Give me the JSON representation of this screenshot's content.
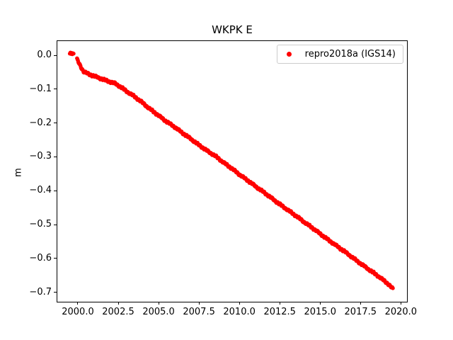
{
  "figure": {
    "background": "#ffffff"
  },
  "chart_data": {
    "type": "scatter",
    "title": "WKPK E",
    "xlabel": "",
    "ylabel": "m",
    "grid": false,
    "xlim": [
      1998.73,
      2020.38
    ],
    "ylim": [
      -0.728,
      0.042
    ],
    "xticks": {
      "values": [
        2000.0,
        2002.5,
        2005.0,
        2007.5,
        2010.0,
        2012.5,
        2015.0,
        2017.5,
        2020.0
      ],
      "labels": [
        "2000.0",
        "2002.5",
        "2005.0",
        "2007.5",
        "2010.0",
        "2012.5",
        "2015.0",
        "2017.5",
        "2020.0"
      ]
    },
    "yticks": {
      "values": [
        0.0,
        -0.1,
        -0.2,
        -0.3,
        -0.4,
        -0.5,
        -0.6,
        -0.7
      ],
      "labels": [
        "0.0",
        "−0.1",
        "−0.2",
        "−0.3",
        "−0.4",
        "−0.5",
        "−0.6",
        "−0.7"
      ]
    },
    "legend": {
      "label": "repro2018a (IGS14)",
      "loc": "upper right",
      "marker_color": "#ff0000",
      "edge_color": "#cccccc"
    },
    "series": [
      {
        "name": "repro2018a (IGS14)",
        "color": "#ff0000",
        "marker": "circle",
        "marker_radius_px": 2.7,
        "points_per_year": 52,
        "t_start": 1999.95,
        "t_end": 2019.5,
        "trend_m_per_yr": -0.0352,
        "pre_gap_cluster": [
          [
            1999.5,
            0.005
          ],
          [
            1999.54,
            0.008
          ],
          [
            1999.58,
            0.004
          ],
          [
            1999.62,
            0.007
          ],
          [
            1999.66,
            0.003
          ],
          [
            1999.7,
            0.006
          ],
          [
            1999.74,
            0.005
          ]
        ],
        "anchors": [
          [
            1999.95,
            -0.012
          ],
          [
            2000.1,
            -0.026
          ],
          [
            2000.35,
            -0.048
          ],
          [
            2000.7,
            -0.056
          ],
          [
            2001.1,
            -0.063
          ],
          [
            2001.5,
            -0.07
          ],
          [
            2001.9,
            -0.077
          ],
          [
            2002.3,
            -0.083
          ],
          [
            2002.7,
            -0.095
          ],
          [
            2003.0,
            -0.106
          ],
          [
            2003.4,
            -0.118
          ],
          [
            2003.9,
            -0.136
          ],
          [
            2004.4,
            -0.156
          ],
          [
            2005.0,
            -0.178
          ],
          [
            2005.5,
            -0.196
          ],
          [
            2006.0,
            -0.212
          ],
          [
            2006.5,
            -0.23
          ],
          [
            2007.0,
            -0.247
          ],
          [
            2007.5,
            -0.265
          ],
          [
            2008.0,
            -0.282
          ],
          [
            2008.5,
            -0.297
          ],
          [
            2009.0,
            -0.316
          ],
          [
            2009.5,
            -0.333
          ],
          [
            2010.0,
            -0.352
          ],
          [
            2010.5,
            -0.369
          ],
          [
            2011.0,
            -0.387
          ],
          [
            2011.5,
            -0.404
          ],
          [
            2012.0,
            -0.422
          ],
          [
            2012.5,
            -0.44
          ],
          [
            2013.0,
            -0.457
          ],
          [
            2013.5,
            -0.474
          ],
          [
            2014.0,
            -0.492
          ],
          [
            2014.5,
            -0.509
          ],
          [
            2015.0,
            -0.527
          ],
          [
            2015.5,
            -0.545
          ],
          [
            2016.0,
            -0.562
          ],
          [
            2016.5,
            -0.579
          ],
          [
            2017.0,
            -0.597
          ],
          [
            2017.5,
            -0.615
          ],
          [
            2018.0,
            -0.632
          ],
          [
            2018.5,
            -0.649
          ],
          [
            2019.0,
            -0.667
          ],
          [
            2019.25,
            -0.677
          ],
          [
            2019.5,
            -0.69
          ]
        ],
        "jitter": {
          "amps": [
            0.002,
            0.0012,
            0.0008
          ],
          "freqs": [
            0.731,
            0.211,
            2.317
          ],
          "phases": [
            0.9,
            1.3,
            0.5
          ]
        }
      }
    ]
  }
}
